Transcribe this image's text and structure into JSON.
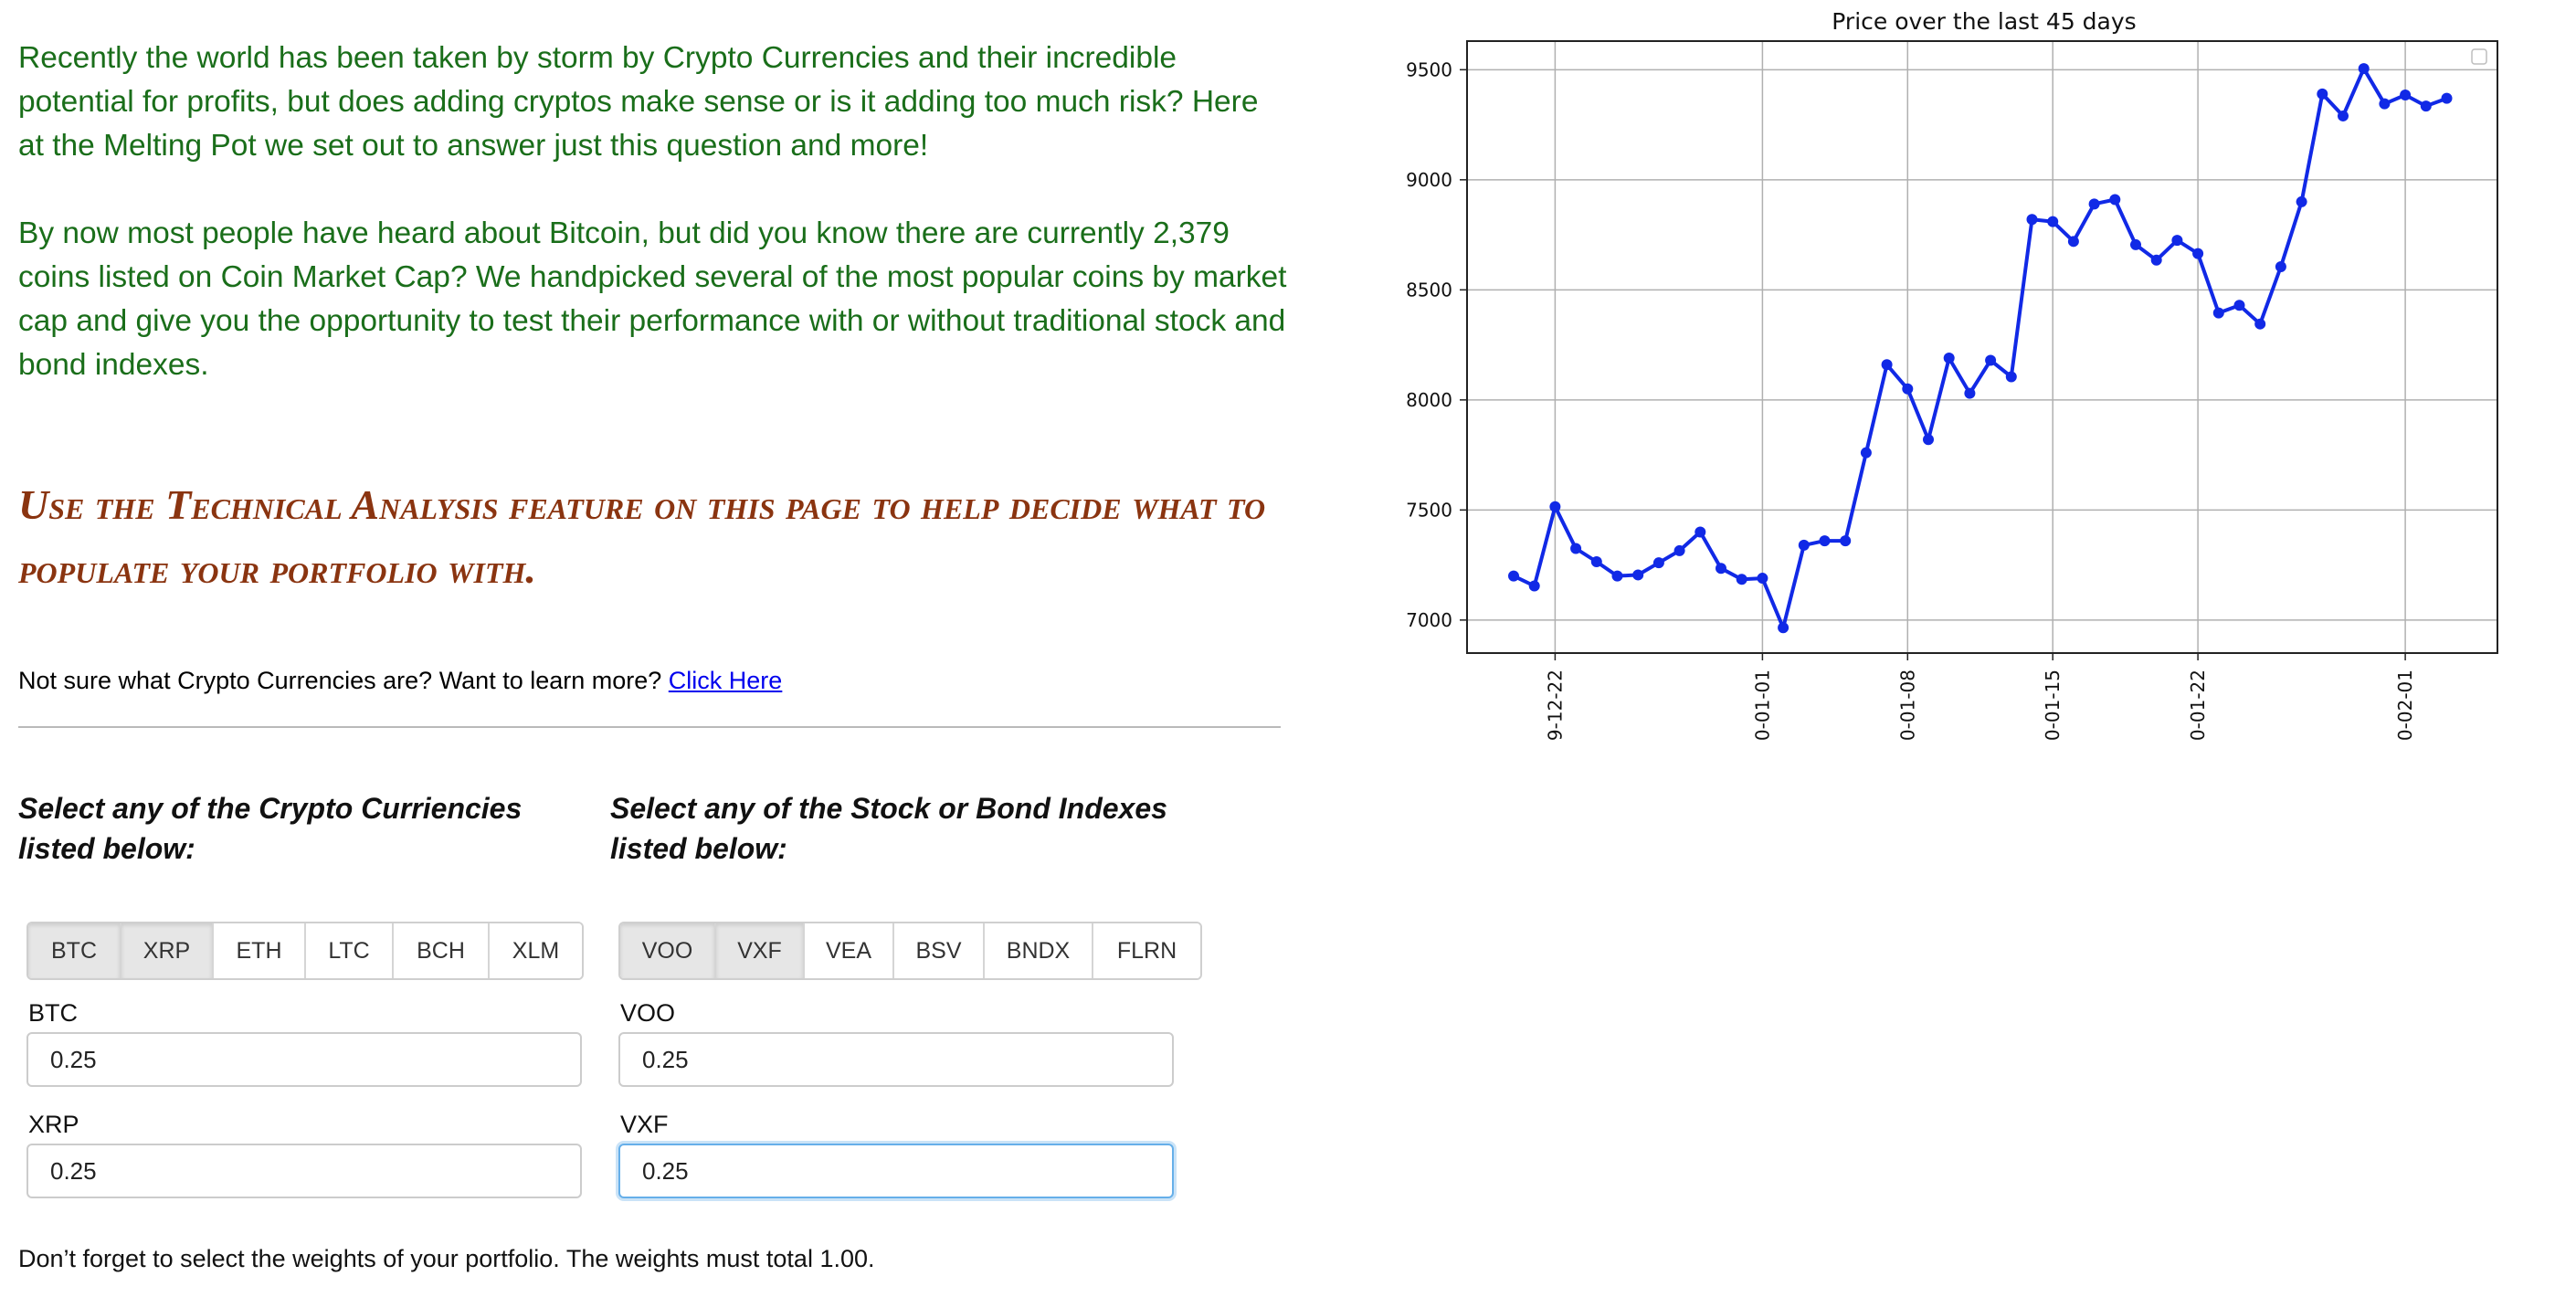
{
  "intro": {
    "p1": "Recently the world has been taken by storm by Crypto Currencies and their incredible potential for profits, but does adding cryptos make sense or is it adding too much risk? Here at the Melting Pot we set out to answer just this question and more!",
    "p2": "By now most people have heard about Bitcoin, but did you know there are currently 2,379 coins listed on Coin Market Cap? We handpicked several of the most popular coins by market cap and give you the opportunity to test their performance with or without traditional stock and bond indexes."
  },
  "headline": "Use the Technical Analysis feature on this page to help decide what to populate your portfolio with.",
  "learn_more": {
    "text": "Not sure what Crypto Currencies are? Want to learn more? ",
    "link": "Click Here"
  },
  "crypto": {
    "title": "Select any of the Crypto Curriencies listed below:",
    "buttons": [
      "BTC",
      "XRP",
      "ETH",
      "LTC",
      "BCH",
      "XLM"
    ],
    "active": [
      "BTC",
      "XRP"
    ],
    "weights": [
      {
        "label": "BTC",
        "value": "0.25"
      },
      {
        "label": "XRP",
        "value": "0.25"
      }
    ]
  },
  "stocks": {
    "title": "Select any of the Stock or Bond Indexes listed below:",
    "buttons": [
      "VOO",
      "VXF",
      "VEA",
      "BSV",
      "BNDX",
      "FLRN"
    ],
    "active": [
      "VOO",
      "VXF"
    ],
    "weights": [
      {
        "label": "VOO",
        "value": "0.25"
      },
      {
        "label": "VXF",
        "value": "0.25"
      }
    ]
  },
  "note": "Don’t forget to select the weights of your portfolio. The weights must total 1.00.",
  "chart_data": {
    "type": "line",
    "title": "Price over the last 45 days",
    "xlabel": "",
    "ylabel": "",
    "x_ticks": [
      "9-12-22",
      "0-01-01",
      "0-01-08",
      "0-01-15",
      "0-01-22",
      "0-02-01"
    ],
    "x_tick_index": [
      2,
      12,
      19,
      26,
      33,
      43
    ],
    "yticks": [
      7000,
      7500,
      8000,
      8500,
      9000,
      9500
    ],
    "ylim": [
      6850,
      9630
    ],
    "grid": true,
    "series": [
      {
        "color": "#1129e6",
        "values": [
          7200,
          7155,
          7515,
          7325,
          7265,
          7200,
          7205,
          7260,
          7315,
          7400,
          7235,
          7185,
          7190,
          6965,
          7340,
          7360,
          7360,
          7760,
          8160,
          8050,
          7820,
          8190,
          8030,
          8180,
          8105,
          8820,
          8810,
          8720,
          8890,
          8910,
          8705,
          8635,
          8725,
          8665,
          8395,
          8430,
          8345,
          8605,
          8900,
          9390,
          9290,
          9505,
          9345,
          9385,
          9335,
          9370
        ]
      }
    ]
  }
}
